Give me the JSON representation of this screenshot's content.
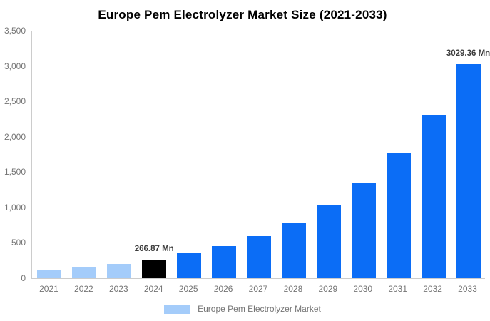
{
  "chart_data": {
    "type": "bar",
    "title": "Europe Pem Electrolyzer Market Size (2021-2033)",
    "units": "Mn",
    "categories": [
      "2021",
      "2022",
      "2023",
      "2024",
      "2025",
      "2026",
      "2027",
      "2028",
      "2029",
      "2030",
      "2031",
      "2032",
      "2033"
    ],
    "values": [
      118,
      158,
      205,
      266.87,
      350,
      458,
      600,
      786,
      1029,
      1348,
      1766,
      2313,
      3029.36
    ],
    "annotations": [
      {
        "index": 3,
        "text": "266.87 Mn"
      },
      {
        "index": 12,
        "text": "3029.36 Mn"
      }
    ],
    "bar_color_keys": [
      "historical",
      "historical",
      "historical",
      "base_year",
      "forecast",
      "forecast",
      "forecast",
      "forecast",
      "forecast",
      "forecast",
      "forecast",
      "forecast",
      "forecast"
    ],
    "colors": {
      "historical": "#a4ccfa",
      "base_year": "#000000",
      "forecast": "#0b6df6",
      "axis_line": "#cccccc",
      "axis_text": "#757575",
      "annotation_text": "#3c3c3c"
    },
    "xlabel": "",
    "ylabel": "",
    "ylim": [
      0,
      3500
    ],
    "yticks": [
      {
        "value": 0,
        "label": "0"
      },
      {
        "value": 500,
        "label": "500"
      },
      {
        "value": 1000,
        "label": "1,000"
      },
      {
        "value": 1500,
        "label": "1,500"
      },
      {
        "value": 2000,
        "label": "2,000"
      },
      {
        "value": 2500,
        "label": "2,500"
      },
      {
        "value": 3000,
        "label": "3,000"
      },
      {
        "value": 3500,
        "label": "3,500"
      }
    ],
    "grid": false,
    "legend": {
      "label": "Europe Pem Electrolyzer Market",
      "position": "bottom"
    }
  }
}
